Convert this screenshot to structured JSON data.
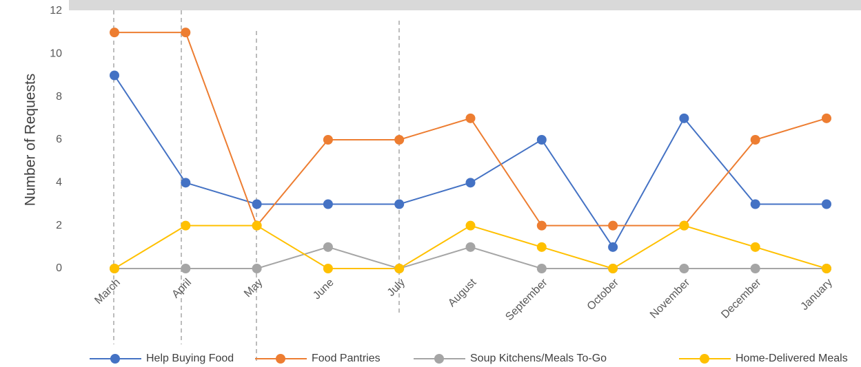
{
  "chart_data": {
    "type": "line",
    "y_label": "Number of Requests",
    "categories": [
      "March",
      "April",
      "May",
      "June",
      "July",
      "August",
      "September",
      "October",
      "November",
      "December",
      "January"
    ],
    "series": [
      {
        "name": "Help Buying Food",
        "color": "#4472c4",
        "values": [
          9,
          4,
          3,
          3,
          3,
          4,
          6,
          1,
          7,
          3,
          3
        ]
      },
      {
        "name": "Food Pantries",
        "color": "#ed7d31",
        "values": [
          11,
          11,
          2,
          6,
          6,
          7,
          2,
          2,
          2,
          6,
          7
        ]
      },
      {
        "name": "Soup Kitchens/Meals To-Go",
        "color": "#a5a5a5",
        "values": [
          0,
          0,
          0,
          1,
          0,
          1,
          0,
          0,
          0,
          0,
          0
        ]
      },
      {
        "name": "Home-Delivered Meals",
        "color": "#ffc000",
        "values": [
          0,
          2,
          2,
          0,
          0,
          2,
          1,
          0,
          2,
          1,
          0
        ]
      }
    ],
    "ylim": [
      0,
      12
    ],
    "yticks": [
      0,
      2,
      4,
      6,
      8,
      10,
      12
    ],
    "grid": false,
    "legend": "bottom"
  }
}
